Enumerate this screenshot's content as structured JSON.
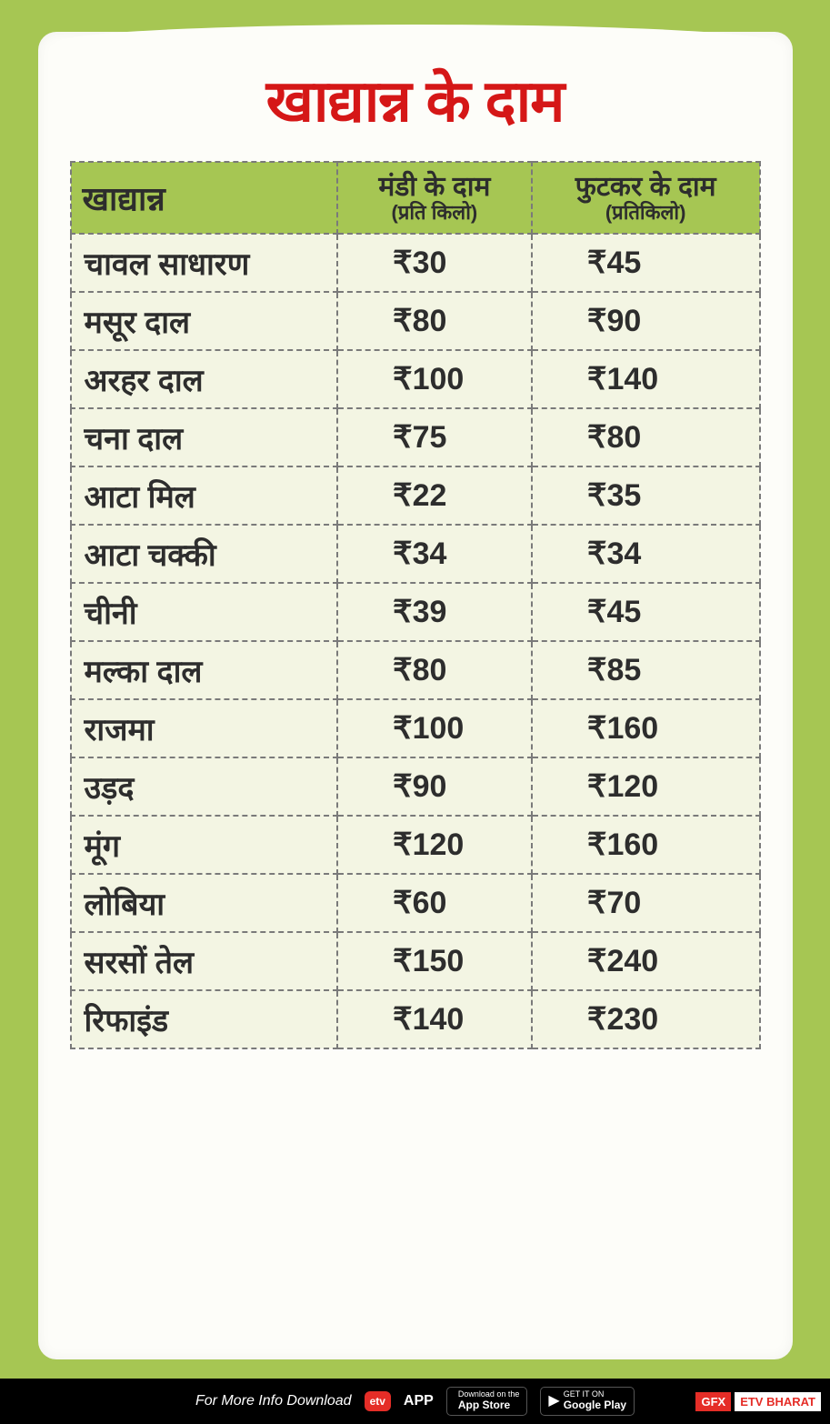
{
  "title": "खाद्यान्न के दाम",
  "columns": {
    "item": "खाद्यान्न",
    "mandi": "मंडी के दाम",
    "mandi_sub": "(प्रति किलो)",
    "retail": "फुटकर के दाम",
    "retail_sub": "(प्रतिकिलो)"
  },
  "rows": [
    {
      "name": "चावल साधारण",
      "mandi": "₹30",
      "retail": "₹45"
    },
    {
      "name": "मसूर दाल",
      "mandi": "₹80",
      "retail": "₹90"
    },
    {
      "name": "अरहर दाल",
      "mandi": "₹100",
      "retail": "₹140"
    },
    {
      "name": "चना दाल",
      "mandi": "₹75",
      "retail": "₹80"
    },
    {
      "name": "आटा मिल",
      "mandi": "₹22",
      "retail": "₹35"
    },
    {
      "name": "आटा चक्की",
      "mandi": "₹34",
      "retail": "₹34"
    },
    {
      "name": "चीनी",
      "mandi": "₹39",
      "retail": "₹45"
    },
    {
      "name": "मल्का दाल",
      "mandi": "₹80",
      "retail": "₹85"
    },
    {
      "name": "राजमा",
      "mandi": "₹100",
      "retail": "₹160"
    },
    {
      "name": "उड़द",
      "mandi": "₹90",
      "retail": "₹120"
    },
    {
      "name": "मूंग",
      "mandi": "₹120",
      "retail": "₹160"
    },
    {
      "name": "लोबिया",
      "mandi": "₹60",
      "retail": "₹70"
    },
    {
      "name": "सरसों तेल",
      "mandi": "₹150",
      "retail": "₹240"
    },
    {
      "name": "रिफाइंड",
      "mandi": "₹140",
      "retail": "₹230"
    }
  ],
  "footer": {
    "info_text": "For More Info Download",
    "app_logo": "etv",
    "app_text": "APP",
    "appstore_top": "Download on the",
    "appstore_bottom": "App Store",
    "play_top": "GET IT ON",
    "play_bottom": "Google Play",
    "gfx": "GFX",
    "etv": "ETV BHARAT"
  },
  "styling": {
    "background_color": "#a6c653",
    "paper_color": "#fdfdf9",
    "title_color": "#d51717",
    "header_bg": "#a6c653",
    "cell_bg": "#f3f5e3",
    "border_color": "#7a7a7a",
    "footer_bg": "#000000",
    "accent_red": "#e52d27",
    "title_fontsize": 64,
    "header_fontsize": 36,
    "cell_fontsize": 34
  }
}
